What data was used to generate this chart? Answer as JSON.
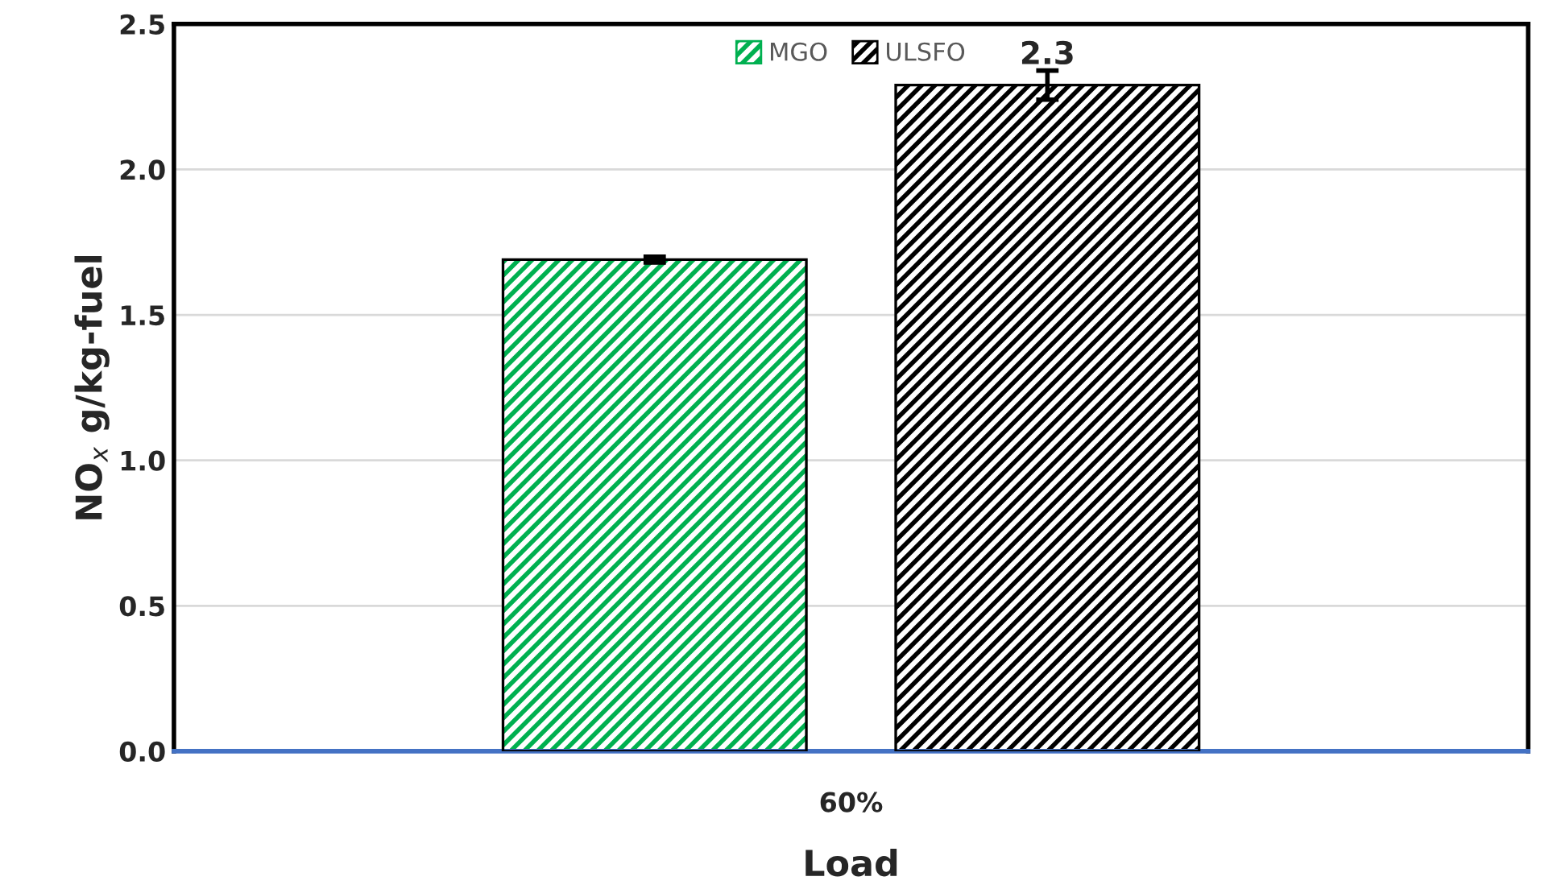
{
  "chart_data": {
    "type": "bar",
    "xlabel": "Load",
    "ylabel": "NO$_{x}$ g/kg-fuel",
    "categories": [
      "60%"
    ],
    "series": [
      {
        "name": "MGO",
        "color": "#00b050",
        "values": [
          1.69
        ],
        "errors": [
          0.01
        ],
        "value_labels": [
          null
        ]
      },
      {
        "name": "ULSFO",
        "color": "#000000",
        "values": [
          2.29
        ],
        "errors": [
          0.05
        ],
        "value_labels": [
          "2.3"
        ]
      }
    ],
    "ylim": [
      0,
      2.5
    ],
    "yticks": [
      {
        "value": 0,
        "label": "0.0"
      },
      {
        "value": 0.5,
        "label": "0.5"
      },
      {
        "value": 1.0,
        "label": "1.0"
      },
      {
        "value": 1.5,
        "label": "1.5"
      },
      {
        "value": 2.0,
        "label": "2.0"
      },
      {
        "value": 2.5,
        "label": "2.5"
      }
    ],
    "grid": "y",
    "legend": "top"
  }
}
